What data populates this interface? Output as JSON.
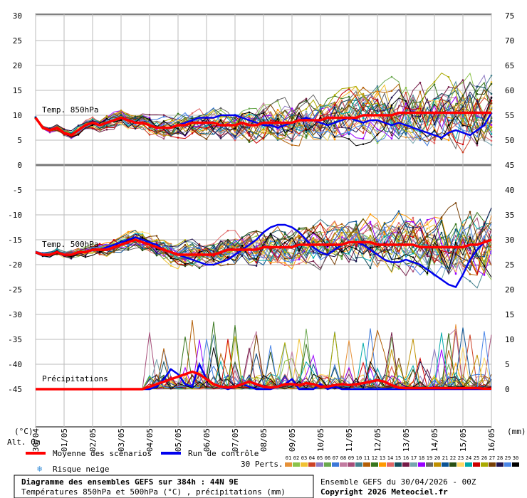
{
  "chart_data": {
    "type": "line",
    "title": "Diagramme des ensembles GEFS sur 384h : 44N 9E",
    "subtitle": "Températures 850hPa et 500hPa (°C) , précipitations (mm)",
    "run_label": "Ensemble GEFS du 30/04/2026 - 00Z",
    "copyright": "Copyright 2026 Meteociel.fr",
    "left_axis_unit": "(°C)",
    "right_axis_unit": "(mm)",
    "alt_label": "Alt. 0m",
    "left_ticks": [
      "30",
      "25",
      "20",
      "15",
      "10",
      "5",
      "0",
      "-5",
      "-10",
      "-15",
      "-20",
      "-25",
      "-30",
      "-35",
      "-40",
      "-45"
    ],
    "right_ticks": [
      "75",
      "70",
      "65",
      "60",
      "55",
      "50",
      "45",
      "40",
      "35",
      "30",
      "25",
      "20",
      "15",
      "10",
      "5",
      "0"
    ],
    "x_dates": [
      "30/04",
      "01/05",
      "02/05",
      "03/05",
      "04/05",
      "05/05",
      "06/05",
      "07/05",
      "08/05",
      "09/05",
      "10/05",
      "11/05",
      "12/05",
      "13/05",
      "14/05",
      "15/05",
      "16/05"
    ],
    "panels": {
      "t850": "Temp. 850hPa",
      "t500": "Temp. 500hPa",
      "precip": "Précipitations"
    },
    "legend": {
      "mean": "Moyenne des scénarios",
      "control": "Run de contrôle",
      "snow": "Risque neige",
      "perts": "30 Perts.",
      "pert_numbers": [
        "01",
        "02",
        "03",
        "04",
        "05",
        "06",
        "07",
        "08",
        "09",
        "10",
        "11",
        "12",
        "13",
        "14",
        "15",
        "16",
        "17",
        "18",
        "19",
        "20",
        "21",
        "22",
        "23",
        "24",
        "25",
        "26",
        "27",
        "28",
        "29",
        "30"
      ],
      "pert_colors": [
        "#e69138",
        "#8bc34a",
        "#f1c232",
        "#cc4125",
        "#8e7cc3",
        "#6aa84f",
        "#3c78d8",
        "#c27ba0",
        "#a64d79",
        "#45818e",
        "#b45f06",
        "#38761d",
        "#ff9900",
        "#e06666",
        "#134f5c",
        "#741b47",
        "#76a5af",
        "#9900ff",
        "#666666",
        "#bf9000",
        "#0b5394",
        "#274e13",
        "#ffd966",
        "#00aaaa",
        "#cc0000",
        "#aaaa00",
        "#783f04",
        "#20124d",
        "#4a86e8",
        "#000000"
      ]
    },
    "series": {
      "t850_mean": [
        9.5,
        7.5,
        7,
        7.5,
        6.5,
        6,
        7,
        8,
        8.5,
        8,
        8.5,
        9,
        9.5,
        9,
        8.5,
        8.5,
        8,
        7.5,
        7.5,
        7.5,
        8,
        8,
        8.5,
        8.5,
        8.5,
        8.5,
        8,
        8,
        8,
        8.5,
        8,
        8,
        8.5,
        8.5,
        8.5,
        8.5,
        8.5,
        9,
        9,
        9,
        9,
        9.5,
        9.5,
        9.5,
        9.5,
        9.5,
        10,
        10,
        10,
        10,
        10,
        10.5,
        10.5,
        10.5,
        10.5,
        10.5,
        10.5,
        10.5,
        10.5,
        10.5,
        10.5,
        10.5,
        10.5,
        10.5,
        10.5
      ],
      "t850_control": [
        9.5,
        7.5,
        7,
        7.5,
        6.5,
        6,
        7,
        8,
        8.5,
        8,
        8.5,
        9,
        9.5,
        9,
        8.5,
        8.5,
        8,
        7.5,
        7.5,
        7.5,
        8,
        8.5,
        9,
        9.5,
        9.5,
        9.5,
        10,
        10,
        10,
        9.5,
        9,
        8.5,
        8,
        8,
        7.5,
        8,
        8.5,
        9,
        9.5,
        9,
        8.5,
        8,
        8.5,
        9,
        9.5,
        9,
        8.5,
        9,
        9,
        8.5,
        8,
        8.5,
        8,
        7.5,
        7,
        6.5,
        6,
        5.5,
        6.5,
        7,
        6.5,
        6,
        7,
        8,
        10.5
      ],
      "t500_mean": [
        -17.5,
        -18,
        -18,
        -17.5,
        -18,
        -18,
        -17.5,
        -17.5,
        -17,
        -17,
        -17,
        -16.5,
        -16,
        -15.5,
        -15,
        -15.5,
        -16,
        -16.5,
        -17,
        -17.5,
        -18,
        -18,
        -18,
        -18,
        -18,
        -18,
        -17.5,
        -17,
        -17,
        -17,
        -17,
        -17,
        -16.5,
        -16.5,
        -16.5,
        -16.5,
        -16.5,
        -16,
        -16,
        -16,
        -16,
        -16,
        -16,
        -16,
        -15.5,
        -15.5,
        -15.5,
        -15.5,
        -16,
        -16,
        -16,
        -16,
        -16,
        -16,
        -16.5,
        -16.5,
        -16.5,
        -16.5,
        -16.5,
        -16.5,
        -16.5,
        -16,
        -16,
        -15.5,
        -15
      ],
      "t500_control": [
        -17.5,
        -18,
        -18,
        -17.5,
        -18,
        -18,
        -17.5,
        -17.5,
        -17,
        -17,
        -16.5,
        -16,
        -15.5,
        -15,
        -14.5,
        -15,
        -15.5,
        -16,
        -17,
        -17.5,
        -18,
        -18.5,
        -19,
        -19.5,
        -20,
        -20,
        -19.5,
        -19,
        -18,
        -17,
        -16,
        -15,
        -13.5,
        -12.5,
        -12,
        -12,
        -12.5,
        -13.5,
        -15,
        -16.5,
        -17.5,
        -18,
        -17,
        -16,
        -15.5,
        -15.5,
        -16,
        -17,
        -18,
        -19,
        -19.5,
        -19.5,
        -19,
        -19.5,
        -20,
        -21,
        -22,
        -23,
        -24,
        -24.5,
        -22,
        -19,
        -17,
        -15.5,
        -15
      ],
      "precip_mean": [
        0,
        0,
        0,
        0,
        0,
        0,
        0,
        0,
        0,
        0,
        0,
        0,
        0,
        0,
        0,
        0,
        0.5,
        1,
        1.5,
        2,
        2.5,
        3,
        3.5,
        3,
        2,
        1,
        0.5,
        0.3,
        0.5,
        1,
        1.5,
        1,
        0.5,
        0.3,
        0.5,
        1,
        1,
        0.8,
        1.2,
        1,
        0.5,
        0.5,
        0.8,
        1,
        0.8,
        1,
        1.2,
        1.5,
        1.8,
        1.5,
        0.8,
        0.3,
        0.2,
        0.2,
        0.2,
        0.2,
        0.2,
        0.2,
        0.2,
        0.2,
        0.2,
        0.2,
        0.2,
        0.1,
        0.1
      ],
      "precip_control": [
        0,
        0,
        0,
        0,
        0,
        0,
        0,
        0,
        0,
        0,
        0,
        0,
        0,
        0,
        0,
        0,
        0,
        0.5,
        2,
        4,
        3,
        1,
        0.5,
        5,
        2,
        1,
        0.5,
        0,
        0.5,
        1,
        0.5,
        0,
        0,
        0,
        0.5,
        1,
        2,
        0,
        0,
        0,
        1,
        0,
        0.5,
        0,
        0,
        0,
        0,
        0,
        0,
        0,
        0,
        0,
        0,
        0,
        0,
        0,
        0,
        0,
        0,
        0,
        0,
        0,
        0,
        0,
        0
      ]
    }
  }
}
